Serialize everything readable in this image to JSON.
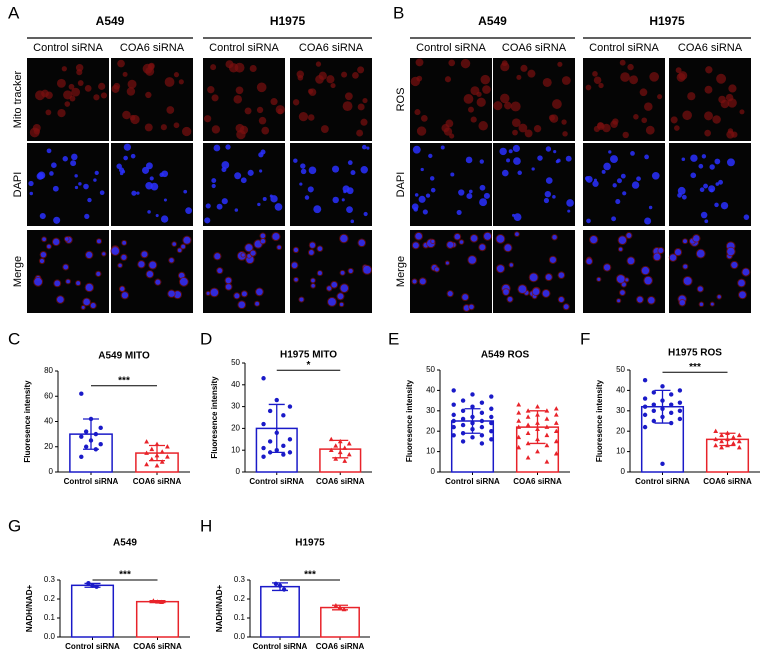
{
  "figure": {
    "panels": [
      {
        "letter": "A",
        "groups": [
          {
            "name": "A549",
            "columns": [
              "Control siRNA",
              "COA6 siRNA"
            ]
          },
          {
            "name": "H1975",
            "columns": [
              "Control siRNA",
              "COA6 siRNA"
            ]
          }
        ],
        "rows": [
          "Mito tracker",
          "DAPI",
          "Merge"
        ]
      },
      {
        "letter": "B",
        "groups": [
          {
            "name": "A549",
            "columns": [
              "Control siRNA",
              "COA6 siRNA"
            ]
          },
          {
            "name": "H1975",
            "columns": [
              "Control siRNA",
              "COA6 siRNA"
            ]
          }
        ],
        "rows": [
          "ROS",
          "DAPI",
          "Merge"
        ]
      }
    ]
  },
  "chart_data": [
    {
      "type": "bar",
      "panel_letter": "C",
      "title": "A549 MITO",
      "y_label": "Fluoresence intensity",
      "categories": [
        "Control siRNA",
        "COA6 siRNA"
      ],
      "values": [
        30,
        15
      ],
      "errors": [
        12,
        6
      ],
      "points": [
        [
          62,
          42,
          35,
          32,
          30,
          28,
          25,
          22,
          20,
          18,
          12
        ],
        [
          24,
          22,
          20,
          18,
          16,
          15,
          13,
          12,
          10,
          8,
          6,
          5
        ]
      ],
      "colors": [
        "#1a1ac8",
        "#e8232a"
      ],
      "markers": [
        "circle",
        "triangle"
      ],
      "ylim": [
        0,
        80
      ],
      "yticks": [
        0,
        20,
        40,
        60,
        80
      ],
      "significance": "***"
    },
    {
      "type": "bar",
      "panel_letter": "D",
      "title": "H1975 MITO",
      "y_label": "Fluoresence intensity",
      "categories": [
        "Control siRNA",
        "COA6 siRNA"
      ],
      "values": [
        20,
        10.5
      ],
      "errors": [
        11,
        4
      ],
      "points": [
        [
          43,
          33,
          30,
          28,
          26,
          22,
          18,
          15,
          14,
          12,
          11,
          10,
          9,
          9,
          8,
          7
        ],
        [
          15,
          14,
          13,
          12,
          11,
          10,
          9,
          8,
          6,
          5
        ]
      ],
      "colors": [
        "#1a1ac8",
        "#e8232a"
      ],
      "markers": [
        "circle",
        "triangle"
      ],
      "ylim": [
        0,
        50
      ],
      "yticks": [
        0,
        10,
        20,
        30,
        40,
        50
      ],
      "significance": "*"
    },
    {
      "type": "bar",
      "panel_letter": "E",
      "title": "A549 ROS",
      "y_label": "Fluoresence intensity",
      "categories": [
        "Control siRNA",
        "COA6 siRNA"
      ],
      "values": [
        25,
        22
      ],
      "errors": [
        6,
        8
      ],
      "points": [
        [
          40,
          38,
          37,
          35,
          34,
          33,
          32,
          31,
          30,
          29,
          28,
          27,
          27,
          26,
          25,
          25,
          24,
          24,
          23,
          22,
          22,
          21,
          20,
          19,
          18,
          18,
          17,
          16,
          15,
          14
        ],
        [
          33,
          32,
          31,
          30,
          30,
          29,
          28,
          28,
          27,
          26,
          25,
          24,
          24,
          23,
          22,
          22,
          21,
          20,
          19,
          18,
          17,
          16,
          15,
          14,
          13,
          12,
          10,
          9,
          7,
          5
        ]
      ],
      "colors": [
        "#1a1ac8",
        "#e8232a"
      ],
      "markers": [
        "circle",
        "triangle"
      ],
      "ylim": [
        0,
        50
      ],
      "yticks": [
        0,
        10,
        20,
        30,
        40,
        50
      ]
    },
    {
      "type": "bar",
      "panel_letter": "F",
      "title": "H1975 ROS",
      "y_label": "Fluoresence intensity",
      "categories": [
        "Control siRNA",
        "COA6 siRNA"
      ],
      "values": [
        32,
        16
      ],
      "errors": [
        8,
        3
      ],
      "points": [
        [
          45,
          42,
          40,
          39,
          38,
          36,
          35,
          34,
          33,
          33,
          32,
          31,
          30,
          30,
          29,
          28,
          27,
          26,
          25,
          24,
          22,
          4
        ],
        [
          20,
          19,
          18,
          18,
          17,
          16,
          16,
          15,
          15,
          14,
          13,
          13,
          12,
          12
        ]
      ],
      "colors": [
        "#1a1ac8",
        "#e8232a"
      ],
      "markers": [
        "circle",
        "triangle"
      ],
      "ylim": [
        0,
        50
      ],
      "yticks": [
        0,
        10,
        20,
        30,
        40,
        50
      ],
      "significance": "***"
    },
    {
      "type": "bar",
      "panel_letter": "G",
      "title": "A549",
      "y_label": "NADH/NAD+",
      "categories": [
        "Control siRNA",
        "COA6 siRNA"
      ],
      "values": [
        0.272,
        0.186
      ],
      "errors": [
        0.01,
        0.005
      ],
      "points": [
        [
          0.283,
          0.27,
          0.265
        ],
        [
          0.19,
          0.185,
          0.183
        ]
      ],
      "colors": [
        "#1a1ac8",
        "#e8232a"
      ],
      "markers": [
        "circle",
        "triangle"
      ],
      "ylim": [
        0,
        0.3
      ],
      "yticks": [
        {
          "value": 0,
          "label": "0.0"
        },
        {
          "value": 0.1,
          "label": "0.1"
        },
        {
          "value": 0.2,
          "label": "0.2"
        },
        {
          "value": 0.3,
          "label": "0.3"
        }
      ],
      "significance": "***"
    },
    {
      "type": "bar",
      "panel_letter": "H",
      "title": "H1975",
      "y_label": "NADH/NAD+",
      "categories": [
        "Control siRNA",
        "COA6 siRNA"
      ],
      "values": [
        0.265,
        0.155
      ],
      "errors": [
        0.02,
        0.012
      ],
      "points": [
        [
          0.28,
          0.27,
          0.25
        ],
        [
          0.165,
          0.155,
          0.145
        ]
      ],
      "colors": [
        "#1a1ac8",
        "#e8232a"
      ],
      "markers": [
        "circle",
        "triangle"
      ],
      "ylim": [
        0,
        0.3
      ],
      "yticks": [
        {
          "value": 0,
          "label": "0.0"
        },
        {
          "value": 0.1,
          "label": "0.1"
        },
        {
          "value": 0.2,
          "label": "0.2"
        },
        {
          "value": 0.3,
          "label": "0.3"
        }
      ],
      "significance": "***"
    }
  ]
}
